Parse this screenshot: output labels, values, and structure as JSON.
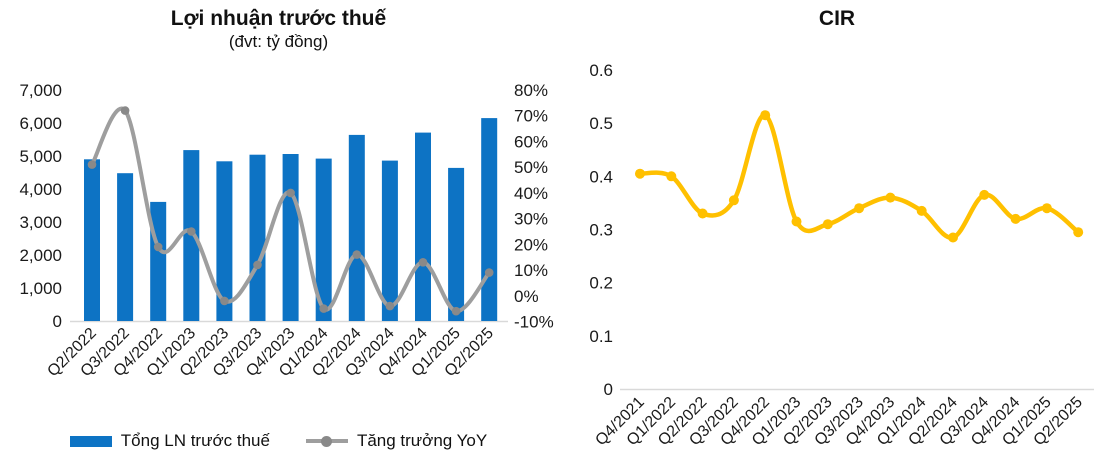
{
  "colors": {
    "bar_blue": "#0D73C4",
    "yoy_line_gray": "#9E9E9E",
    "yoy_marker_gray": "#898989",
    "cir_yellow": "#FFC000",
    "axis_line_gray": "#D9D9D9",
    "tick_text": "#1A1A1A"
  },
  "chart_data": [
    {
      "type": "bar",
      "title": "Lợi nhuận trước thuế",
      "subtitle": "(đvt: tỷ đồng)",
      "categories": [
        "Q2/2022",
        "Q3/2022",
        "Q4/2022",
        "Q1/2023",
        "Q2/2023",
        "Q3/2023",
        "Q4/2023",
        "Q1/2024",
        "Q2/2024",
        "Q3/2024",
        "Q4/2024",
        "Q1/2025",
        "Q2/2025"
      ],
      "series": [
        {
          "name": "Tổng LN trước thuế",
          "type": "bar",
          "axis": "left",
          "color": "#0D73C4",
          "values": [
            4900,
            4480,
            3610,
            5180,
            4840,
            5040,
            5060,
            4920,
            5640,
            4860,
            5710,
            4640,
            6150
          ]
        },
        {
          "name": "Tăng trưởng YoY",
          "type": "line",
          "axis": "right",
          "color": "#9E9E9E",
          "marker_color": "#898989",
          "values_pct": [
            51,
            72,
            19,
            25,
            -2,
            12,
            40,
            -5,
            16,
            -4,
            13,
            -6,
            9
          ]
        }
      ],
      "left_axis": {
        "min": 0,
        "max": 7000,
        "tick_labels": [
          "0",
          "1,000",
          "2,000",
          "3,000",
          "4,000",
          "5,000",
          "6,000",
          "7,000"
        ]
      },
      "right_axis": {
        "min": -10,
        "max": 80,
        "tick_labels": [
          "-10%",
          "0%",
          "10%",
          "20%",
          "30%",
          "40%",
          "50%",
          "60%",
          "70%",
          "80%"
        ],
        "unit": "%"
      },
      "grid": false,
      "legend_position": "bottom"
    },
    {
      "type": "line",
      "title": "CIR",
      "categories": [
        "Q4/2021",
        "Q1/2022",
        "Q2/2022",
        "Q3/2022",
        "Q4/2022",
        "Q1/2023",
        "Q2/2023",
        "Q3/2023",
        "Q4/2023",
        "Q1/2024",
        "Q2/2024",
        "Q3/2024",
        "Q4/2024",
        "Q1/2025",
        "Q2/2025"
      ],
      "series": [
        {
          "name": "CIR",
          "type": "line",
          "color": "#FFC000",
          "values": [
            0.405,
            0.4,
            0.33,
            0.355,
            0.515,
            0.315,
            0.31,
            0.34,
            0.36,
            0.335,
            0.285,
            0.365,
            0.32,
            0.34,
            0.295
          ]
        }
      ],
      "y_axis": {
        "min": 0,
        "max": 0.6,
        "tick_labels": [
          "0",
          "0.1",
          "0.2",
          "0.3",
          "0.4",
          "0.5",
          "0.6"
        ]
      },
      "grid": false,
      "legend_position": "none"
    }
  ]
}
